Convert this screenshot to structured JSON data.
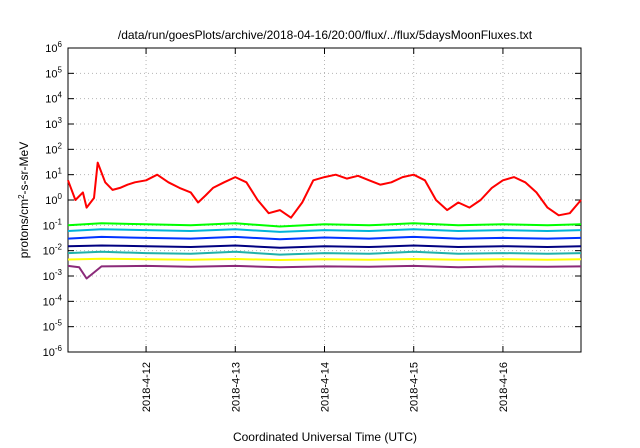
{
  "chart_data": {
    "type": "line",
    "title": "/data/run/goesPlots/archive/2018-04-16/20:00/flux/../flux/5daysMoonFluxes.txt",
    "xlabel": "Coordinated Universal Time (UTC)",
    "ylabel": {
      "before": "protons/cm",
      "sup": "2",
      "after": "-s-sr-MeV"
    },
    "y_scale": "log",
    "ylim": [
      1e-06,
      1000000.0
    ],
    "y_ticks": [
      {
        "base": "10",
        "exp": "6"
      },
      {
        "base": "10",
        "exp": "5"
      },
      {
        "base": "10",
        "exp": "4"
      },
      {
        "base": "10",
        "exp": "3"
      },
      {
        "base": "10",
        "exp": "2"
      },
      {
        "base": "10",
        "exp": "1"
      },
      {
        "base": "10",
        "exp": "0"
      },
      {
        "base": "10",
        "exp": "-1"
      },
      {
        "base": "10",
        "exp": "-2"
      },
      {
        "base": "10",
        "exp": "-3"
      },
      {
        "base": "10",
        "exp": "-4"
      },
      {
        "base": "10",
        "exp": "-5"
      },
      {
        "base": "10",
        "exp": "-6"
      }
    ],
    "xlim": [
      "2018-04-11 03:00",
      "2018-04-16 21:00"
    ],
    "x_ticks": [
      "2018-4-12",
      "2018-4-13",
      "2018-4-14",
      "2018-4-15",
      "2018-4-16"
    ],
    "grid": true,
    "series": [
      {
        "color": "#ff0000",
        "x": [
          "2018-04-11 03:00",
          "2018-04-11 05:00",
          "2018-04-11 07:00",
          "2018-04-11 08:00",
          "2018-04-11 10:00",
          "2018-04-11 11:00",
          "2018-04-11 13:00",
          "2018-04-11 15:00",
          "2018-04-11 17:00",
          "2018-04-11 19:00",
          "2018-04-11 21:00",
          "2018-04-12 00:00",
          "2018-04-12 03:00",
          "2018-04-12 06:00",
          "2018-04-12 09:00",
          "2018-04-12 12:00",
          "2018-04-12 14:00",
          "2018-04-12 16:00",
          "2018-04-12 18:00",
          "2018-04-12 21:00",
          "2018-04-13 00:00",
          "2018-04-13 03:00",
          "2018-04-13 06:00",
          "2018-04-13 09:00",
          "2018-04-13 12:00",
          "2018-04-13 15:00",
          "2018-04-13 18:00",
          "2018-04-13 21:00",
          "2018-04-14 00:00",
          "2018-04-14 03:00",
          "2018-04-14 06:00",
          "2018-04-14 09:00",
          "2018-04-14 12:00",
          "2018-04-14 15:00",
          "2018-04-14 18:00",
          "2018-04-14 21:00",
          "2018-04-15 00:00",
          "2018-04-15 03:00",
          "2018-04-15 06:00",
          "2018-04-15 09:00",
          "2018-04-15 12:00",
          "2018-04-15 15:00",
          "2018-04-15 18:00",
          "2018-04-15 21:00",
          "2018-04-16 00:00",
          "2018-04-16 03:00",
          "2018-04-16 06:00",
          "2018-04-16 09:00",
          "2018-04-16 12:00",
          "2018-04-16 15:00",
          "2018-04-16 18:00",
          "2018-04-16 21:00"
        ],
        "y": [
          6,
          1,
          2,
          0.5,
          1.2,
          30,
          5,
          2.5,
          3,
          4,
          5,
          6,
          10,
          5,
          3,
          2,
          0.8,
          1.5,
          3,
          5,
          8,
          5,
          1,
          0.3,
          0.4,
          0.2,
          0.8,
          6,
          8,
          10,
          7,
          9,
          6,
          4,
          5,
          8,
          10,
          6,
          1,
          0.4,
          0.8,
          0.5,
          1,
          3,
          6,
          8,
          5,
          2,
          0.5,
          0.25,
          0.3,
          1
        ]
      },
      {
        "color": "#00ff00",
        "x": [
          "2018-04-11 03:00",
          "2018-04-11 12:00",
          "2018-04-12 00:00",
          "2018-04-12 12:00",
          "2018-04-13 00:00",
          "2018-04-13 12:00",
          "2018-04-14 00:00",
          "2018-04-14 12:00",
          "2018-04-15 00:00",
          "2018-04-15 12:00",
          "2018-04-16 00:00",
          "2018-04-16 12:00",
          "2018-04-16 21:00"
        ],
        "y": [
          0.1,
          0.12,
          0.11,
          0.1,
          0.12,
          0.09,
          0.11,
          0.1,
          0.12,
          0.1,
          0.11,
          0.1,
          0.11
        ]
      },
      {
        "color": "#00b4d8",
        "x": [
          "2018-04-11 03:00",
          "2018-04-11 12:00",
          "2018-04-12 00:00",
          "2018-04-12 12:00",
          "2018-04-13 00:00",
          "2018-04-13 12:00",
          "2018-04-14 00:00",
          "2018-04-14 12:00",
          "2018-04-15 00:00",
          "2018-04-15 12:00",
          "2018-04-16 00:00",
          "2018-04-16 12:00",
          "2018-04-16 21:00"
        ],
        "y": [
          0.06,
          0.07,
          0.065,
          0.06,
          0.07,
          0.055,
          0.065,
          0.06,
          0.07,
          0.06,
          0.065,
          0.06,
          0.065
        ]
      },
      {
        "color": "#0033ff",
        "x": [
          "2018-04-11 03:00",
          "2018-04-11 12:00",
          "2018-04-12 00:00",
          "2018-04-12 12:00",
          "2018-04-13 00:00",
          "2018-04-13 12:00",
          "2018-04-14 00:00",
          "2018-04-14 12:00",
          "2018-04-15 00:00",
          "2018-04-15 12:00",
          "2018-04-16 00:00",
          "2018-04-16 12:00",
          "2018-04-16 21:00"
        ],
        "y": [
          0.03,
          0.035,
          0.032,
          0.03,
          0.035,
          0.028,
          0.033,
          0.03,
          0.035,
          0.03,
          0.032,
          0.03,
          0.032
        ]
      },
      {
        "color": "#000080",
        "x": [
          "2018-04-11 03:00",
          "2018-04-11 12:00",
          "2018-04-12 00:00",
          "2018-04-12 12:00",
          "2018-04-13 00:00",
          "2018-04-13 12:00",
          "2018-04-14 00:00",
          "2018-04-14 12:00",
          "2018-04-15 00:00",
          "2018-04-15 12:00",
          "2018-04-16 00:00",
          "2018-04-16 12:00",
          "2018-04-16 21:00"
        ],
        "y": [
          0.015,
          0.016,
          0.015,
          0.014,
          0.016,
          0.013,
          0.015,
          0.014,
          0.016,
          0.014,
          0.015,
          0.014,
          0.015
        ]
      },
      {
        "color": "#20b2aa",
        "x": [
          "2018-04-11 03:00",
          "2018-04-11 12:00",
          "2018-04-12 00:00",
          "2018-04-12 12:00",
          "2018-04-13 00:00",
          "2018-04-13 12:00",
          "2018-04-14 00:00",
          "2018-04-14 12:00",
          "2018-04-15 00:00",
          "2018-04-15 12:00",
          "2018-04-16 00:00",
          "2018-04-16 12:00",
          "2018-04-16 21:00"
        ],
        "y": [
          0.008,
          0.009,
          0.008,
          0.0075,
          0.009,
          0.007,
          0.008,
          0.0075,
          0.009,
          0.0075,
          0.008,
          0.0075,
          0.008
        ]
      },
      {
        "color": "#ffff00",
        "x": [
          "2018-04-11 03:00",
          "2018-04-11 12:00",
          "2018-04-12 00:00",
          "2018-04-12 12:00",
          "2018-04-13 00:00",
          "2018-04-13 12:00",
          "2018-04-14 00:00",
          "2018-04-14 12:00",
          "2018-04-15 00:00",
          "2018-04-15 12:00",
          "2018-04-16 00:00",
          "2018-04-16 12:00",
          "2018-04-16 21:00"
        ],
        "y": [
          0.0045,
          0.0048,
          0.0046,
          0.0044,
          0.0047,
          0.0043,
          0.0046,
          0.0044,
          0.0047,
          0.0044,
          0.0046,
          0.0044,
          0.0046
        ]
      },
      {
        "color": "#8b2a7a",
        "x": [
          "2018-04-11 03:00",
          "2018-04-11 06:00",
          "2018-04-11 08:00",
          "2018-04-11 12:00",
          "2018-04-12 00:00",
          "2018-04-12 12:00",
          "2018-04-13 00:00",
          "2018-04-13 12:00",
          "2018-04-14 00:00",
          "2018-04-14 12:00",
          "2018-04-15 00:00",
          "2018-04-15 12:00",
          "2018-04-16 00:00",
          "2018-04-16 12:00",
          "2018-04-16 21:00"
        ],
        "y": [
          0.0025,
          0.0022,
          0.0008,
          0.0024,
          0.0025,
          0.0023,
          0.0025,
          0.0022,
          0.0024,
          0.0023,
          0.0025,
          0.0022,
          0.0024,
          0.0023,
          0.0024
        ]
      }
    ]
  }
}
